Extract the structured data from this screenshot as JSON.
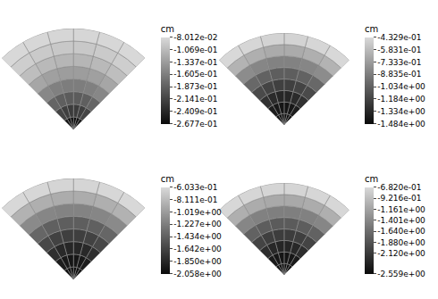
{
  "chart_data": [
    {
      "type": "contour",
      "tick_labels": false,
      "r": [
        0,
        0.125,
        0.25,
        0.375,
        0.5,
        0.625,
        0.75,
        0.875,
        1
      ],
      "theta": [
        45,
        60,
        75,
        90,
        105,
        120,
        135
      ],
      "cells": [
        [
          -0.255,
          -0.262,
          -0.265,
          -0.265,
          -0.262,
          -0.255
        ],
        [
          -0.212,
          -0.218,
          -0.221,
          -0.221,
          -0.218,
          -0.212
        ],
        [
          -0.182,
          -0.188,
          -0.191,
          -0.191,
          -0.188,
          -0.182
        ],
        [
          -0.152,
          -0.158,
          -0.161,
          -0.161,
          -0.158,
          -0.152
        ],
        [
          -0.125,
          -0.13,
          -0.133,
          -0.133,
          -0.13,
          -0.125
        ],
        [
          -0.104,
          -0.108,
          -0.111,
          -0.111,
          -0.108,
          -0.104
        ],
        [
          -0.09,
          -0.093,
          -0.095,
          -0.095,
          -0.093,
          -0.09
        ],
        [
          -0.081,
          -0.082,
          -0.083,
          -0.083,
          -0.082,
          -0.081
        ]
      ],
      "colorbar": {
        "title": "cm",
        "range": [
          -0.2677,
          -0.08012
        ],
        "ticks": [
          {
            "value": -0.08012,
            "label": "-8.012e-02"
          },
          {
            "value": -0.1069,
            "label": "-1.069e-01"
          },
          {
            "value": -0.1337,
            "label": "-1.337e-01"
          },
          {
            "value": -0.1605,
            "label": "-1.605e-01"
          },
          {
            "value": -0.1873,
            "label": "-1.873e-01"
          },
          {
            "value": -0.2141,
            "label": "-2.141e-01"
          },
          {
            "value": -0.2409,
            "label": "-2.409e-01"
          },
          {
            "value": -0.2677,
            "label": "-2.677e-01"
          }
        ]
      }
    },
    {
      "type": "contour",
      "tick_labels": false,
      "r": [
        0,
        0.125,
        0.25,
        0.375,
        0.5,
        0.625,
        0.75,
        0.875,
        1
      ],
      "theta": [
        45,
        60,
        75,
        90,
        105,
        120,
        135
      ],
      "cells": [
        [
          -1.44,
          -1.46,
          -1.47,
          -1.47,
          -1.46,
          -1.44
        ],
        [
          -1.38,
          -1.41,
          -1.42,
          -1.42,
          -1.41,
          -1.38
        ],
        [
          -1.28,
          -1.31,
          -1.33,
          -1.33,
          -1.31,
          -1.28
        ],
        [
          -1.15,
          -1.18,
          -1.2,
          -1.2,
          -1.18,
          -1.15
        ],
        [
          -0.99,
          -1.02,
          -1.04,
          -1.04,
          -1.02,
          -0.99
        ],
        [
          -0.81,
          -0.84,
          -0.86,
          -0.86,
          -0.84,
          -0.81
        ],
        [
          -0.62,
          -0.64,
          -0.66,
          -0.66,
          -0.64,
          -0.62
        ],
        [
          -0.44,
          -0.45,
          -0.46,
          -0.46,
          -0.45,
          -0.44
        ]
      ],
      "colorbar": {
        "title": "cm",
        "range": [
          -1.484,
          -0.4329
        ],
        "ticks": [
          {
            "value": -0.4329,
            "label": "-4.329e-01"
          },
          {
            "value": -0.5831,
            "label": "-5.831e-01"
          },
          {
            "value": -0.7333,
            "label": "-7.333e-01"
          },
          {
            "value": -0.8835,
            "label": "-8.835e-01"
          },
          {
            "value": -1.034,
            "label": "-1.034e+00"
          },
          {
            "value": -1.184,
            "label": "-1.184e+00"
          },
          {
            "value": -1.334,
            "label": "-1.334e+00"
          },
          {
            "value": -1.484,
            "label": "-1.484e+00"
          }
        ]
      }
    },
    {
      "type": "contour",
      "tick_labels": false,
      "r": [
        0,
        0.125,
        0.25,
        0.375,
        0.5,
        0.625,
        0.75,
        0.875,
        1
      ],
      "theta": [
        45,
        60,
        75,
        90,
        105,
        120,
        135
      ],
      "cells": [
        [
          -2.0,
          -2.03,
          -2.04,
          -2.04,
          -2.03,
          -2.0
        ],
        [
          -1.92,
          -1.95,
          -1.97,
          -1.97,
          -1.95,
          -1.92
        ],
        [
          -1.79,
          -1.83,
          -1.85,
          -1.85,
          -1.83,
          -1.79
        ],
        [
          -1.61,
          -1.65,
          -1.67,
          -1.67,
          -1.65,
          -1.61
        ],
        [
          -1.39,
          -1.43,
          -1.45,
          -1.45,
          -1.43,
          -1.39
        ],
        [
          -1.14,
          -1.17,
          -1.19,
          -1.19,
          -1.17,
          -1.14
        ],
        [
          -0.87,
          -0.89,
          -0.91,
          -0.91,
          -0.89,
          -0.87
        ],
        [
          -0.61,
          -0.62,
          -0.63,
          -0.63,
          -0.62,
          -0.61
        ]
      ],
      "colorbar": {
        "title": "cm",
        "range": [
          -2.058,
          -0.6033
        ],
        "ticks": [
          {
            "value": -0.6033,
            "label": "-6.033e-01"
          },
          {
            "value": -0.8111,
            "label": "-8.111e-01"
          },
          {
            "value": -1.019,
            "label": "-1.019e+00"
          },
          {
            "value": -1.227,
            "label": "-1.227e+00"
          },
          {
            "value": -1.434,
            "label": "-1.434e+00"
          },
          {
            "value": -1.642,
            "label": "-1.642e+00"
          },
          {
            "value": -1.85,
            "label": "-1.850e+00"
          },
          {
            "value": -2.058,
            "label": "-2.058e+00"
          }
        ]
      }
    },
    {
      "type": "contour",
      "tick_labels": false,
      "r": [
        0,
        0.125,
        0.25,
        0.375,
        0.5,
        0.625,
        0.75,
        0.875,
        1
      ],
      "theta": [
        45,
        60,
        75,
        90,
        105,
        120,
        135
      ],
      "cells": [
        [
          -2.5,
          -2.53,
          -2.54,
          -2.54,
          -2.53,
          -2.5
        ],
        [
          -2.4,
          -2.44,
          -2.46,
          -2.46,
          -2.44,
          -2.4
        ],
        [
          -2.23,
          -2.28,
          -2.3,
          -2.3,
          -2.28,
          -2.23
        ],
        [
          -2.01,
          -2.06,
          -2.08,
          -2.08,
          -2.06,
          -2.01
        ],
        [
          -1.73,
          -1.78,
          -1.8,
          -1.8,
          -1.78,
          -1.73
        ],
        [
          -1.41,
          -1.45,
          -1.47,
          -1.47,
          -1.45,
          -1.41
        ],
        [
          -1.05,
          -1.08,
          -1.1,
          -1.1,
          -1.08,
          -1.05
        ],
        [
          -0.7,
          -0.71,
          -0.72,
          -0.72,
          -0.71,
          -0.7
        ]
      ],
      "colorbar": {
        "title": "cm",
        "range": [
          -2.559,
          -0.682
        ],
        "ticks": [
          {
            "value": -0.682,
            "label": "-6.820e-01"
          },
          {
            "value": -0.9216,
            "label": "-9.216e-01"
          },
          {
            "value": -1.161,
            "label": "-1.161e+00"
          },
          {
            "value": -1.401,
            "label": "-1.401e+00"
          },
          {
            "value": -1.64,
            "label": "-1.640e+00"
          },
          {
            "value": -1.88,
            "label": "-1.880e+00"
          },
          {
            "value": -2.12,
            "label": "-2.120e+00"
          },
          {
            "value": -2.559,
            "label": "-2.559e+00"
          }
        ]
      }
    }
  ]
}
